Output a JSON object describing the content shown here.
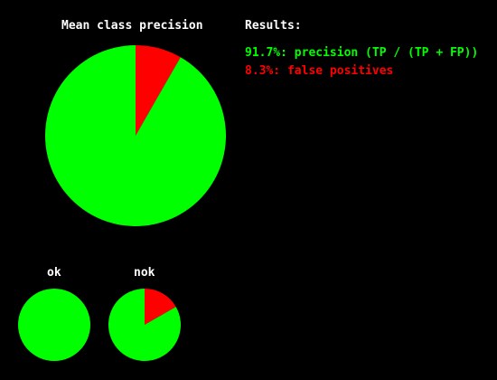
{
  "colors": {
    "background": "#000000",
    "text": "#ffffff",
    "precision": "#00ff00",
    "false_positive": "#ff0000"
  },
  "results": {
    "heading": "Results:",
    "precision_line": "91.7%: precision (TP / (TP + FP))",
    "false_positive_line": "8.3%: false positives"
  },
  "chart_data": [
    {
      "type": "pie",
      "title": "Mean class precision",
      "slices": [
        {
          "label": "false positives",
          "value": 8.3,
          "color": "#ff0000"
        },
        {
          "label": "precision",
          "value": 91.7,
          "color": "#00ff00"
        }
      ]
    },
    {
      "type": "pie",
      "title": "ok",
      "slices": [
        {
          "label": "false positives",
          "value": 0,
          "color": "#ff0000"
        },
        {
          "label": "precision",
          "value": 100,
          "color": "#00ff00"
        }
      ]
    },
    {
      "type": "pie",
      "title": "nok",
      "slices": [
        {
          "label": "false positives",
          "value": 16.7,
          "color": "#ff0000"
        },
        {
          "label": "precision",
          "value": 83.3,
          "color": "#00ff00"
        }
      ]
    }
  ]
}
